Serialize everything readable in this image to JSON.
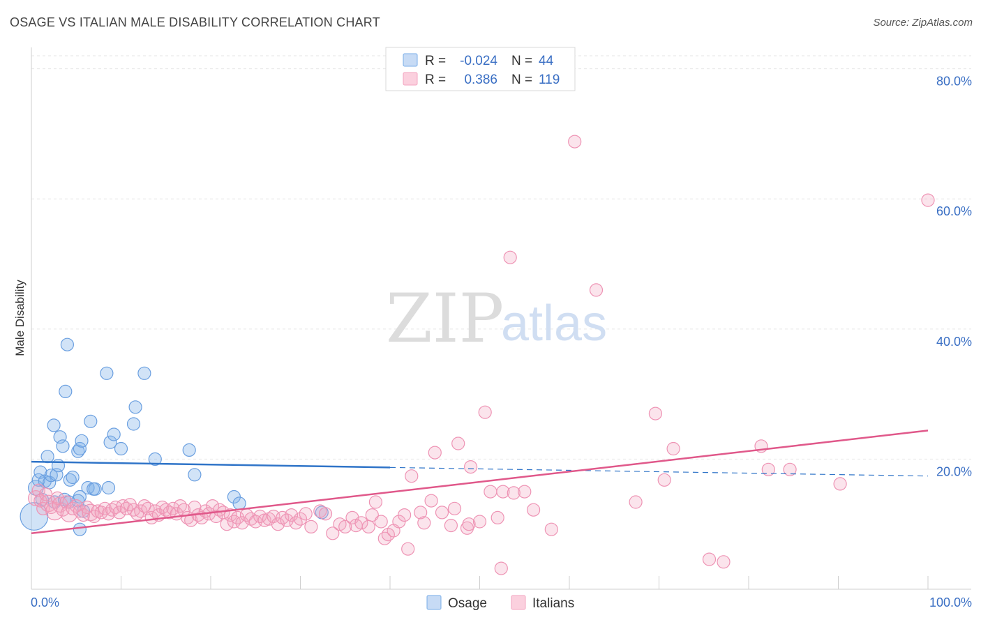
{
  "title": "OSAGE VS ITALIAN MALE DISABILITY CORRELATION CHART",
  "source": "Source: ZipAtlas.com",
  "chart_data": {
    "type": "scatter",
    "title": "OSAGE VS ITALIAN MALE DISABILITY CORRELATION CHART",
    "xlabel": "",
    "ylabel": "Male Disability",
    "xlim": [
      0,
      100
    ],
    "ylim": [
      0,
      82
    ],
    "x_tick_labels": [
      "0.0%",
      "100.0%"
    ],
    "y_ticks": [
      20,
      40,
      60,
      80
    ],
    "y_tick_labels": [
      "20.0%",
      "40.0%",
      "60.0%",
      "80.0%"
    ],
    "grid": true,
    "legend_position": "top-center",
    "stats": [
      {
        "series": "Osage",
        "r_label": "R =",
        "r_value": "-0.024",
        "n_label": "N =",
        "n_value": "44"
      },
      {
        "series": "Italians",
        "r_label": "R =",
        "r_value": "0.386",
        "n_label": "N =",
        "n_value": "119"
      }
    ],
    "series": [
      {
        "name": "Osage",
        "color": "#7aaee8",
        "line_color": "#2f74c8",
        "trend": {
          "x0": 0,
          "y0": 19.6,
          "x1": 100,
          "y1": 17.4,
          "solid_until": 40
        },
        "points": [
          [
            0.3,
            11.2,
            2.2
          ],
          [
            0.5,
            15.6,
            1.2
          ],
          [
            0.8,
            16.8,
            1
          ],
          [
            1.0,
            18.0,
            1
          ],
          [
            1.2,
            13.8,
            1
          ],
          [
            1.5,
            16.6,
            1
          ],
          [
            1.8,
            20.4,
            1
          ],
          [
            2.0,
            16.4,
            1
          ],
          [
            2.2,
            17.5,
            1
          ],
          [
            2.5,
            25.2,
            1
          ],
          [
            2.8,
            17.6,
            1
          ],
          [
            2.6,
            13.4,
            1
          ],
          [
            3.0,
            19.0,
            1
          ],
          [
            3.2,
            23.4,
            1
          ],
          [
            3.5,
            22.0,
            1
          ],
          [
            3.7,
            13.8,
            1
          ],
          [
            3.8,
            30.4,
            1
          ],
          [
            4.0,
            37.6,
            1
          ],
          [
            4.2,
            13.4,
            1
          ],
          [
            4.3,
            16.8,
            1
          ],
          [
            4.6,
            17.2,
            1
          ],
          [
            5.2,
            21.2,
            1
          ],
          [
            5.4,
            21.6,
            1
          ],
          [
            5.6,
            22.8,
            1
          ],
          [
            5.8,
            12.0,
            1
          ],
          [
            5.4,
            9.2,
            1
          ],
          [
            5.2,
            13.6,
            1
          ],
          [
            5.4,
            14.2,
            1
          ],
          [
            6.6,
            25.8,
            1
          ],
          [
            6.3,
            15.6,
            1
          ],
          [
            6.9,
            15.4,
            1
          ],
          [
            7.1,
            15.4,
            1
          ],
          [
            8.4,
            33.2,
            1
          ],
          [
            8.6,
            15.6,
            1
          ],
          [
            8.8,
            22.6,
            1
          ],
          [
            9.2,
            23.8,
            1
          ],
          [
            10.0,
            21.6,
            1
          ],
          [
            11.4,
            25.4,
            1
          ],
          [
            11.6,
            28.0,
            1
          ],
          [
            12.6,
            33.2,
            1
          ],
          [
            13.8,
            20.0,
            1
          ],
          [
            17.6,
            21.4,
            1
          ],
          [
            18.2,
            17.6,
            1
          ],
          [
            22.6,
            14.2,
            1
          ],
          [
            23.2,
            13.2,
            1
          ],
          [
            32.4,
            11.8,
            1
          ]
        ]
      },
      {
        "name": "Italians",
        "color": "#f3a5c0",
        "line_color": "#e0588a",
        "trend": {
          "x0": 0,
          "y0": 8.6,
          "x1": 100,
          "y1": 24.4
        },
        "points": [
          [
            0.5,
            14.0,
            1.2
          ],
          [
            0.8,
            15.2,
            1
          ],
          [
            1.0,
            13.6,
            1
          ],
          [
            1.3,
            12.4,
            1
          ],
          [
            1.6,
            14.6,
            1
          ],
          [
            1.9,
            13.2,
            1.3
          ],
          [
            2.2,
            12.6,
            1
          ],
          [
            2.6,
            12.0,
            1.4
          ],
          [
            2.9,
            14.0,
            1
          ],
          [
            3.2,
            13.0,
            1.2
          ],
          [
            3.5,
            12.2,
            1
          ],
          [
            3.9,
            13.4,
            1
          ],
          [
            4.2,
            11.6,
            1.3
          ],
          [
            4.6,
            12.4,
            1
          ],
          [
            5.0,
            12.8,
            1
          ],
          [
            5.4,
            12.0,
            1
          ],
          [
            5.8,
            11.4,
            1
          ],
          [
            6.2,
            12.6,
            1
          ],
          [
            6.6,
            11.8,
            1.3
          ],
          [
            7.0,
            11.2,
            1
          ],
          [
            7.4,
            12.0,
            1
          ],
          [
            7.8,
            11.8,
            1
          ],
          [
            8.2,
            12.4,
            1
          ],
          [
            8.6,
            11.6,
            1
          ],
          [
            9.0,
            12.2,
            1
          ],
          [
            9.4,
            12.6,
            1
          ],
          [
            9.8,
            11.8,
            1
          ],
          [
            10.2,
            12.8,
            1
          ],
          [
            10.6,
            12.4,
            1
          ],
          [
            11.0,
            13.0,
            1
          ],
          [
            11.4,
            12.2,
            1
          ],
          [
            11.8,
            11.6,
            1
          ],
          [
            12.2,
            12.0,
            1
          ],
          [
            12.6,
            12.8,
            1
          ],
          [
            13.0,
            12.4,
            1
          ],
          [
            13.4,
            11.0,
            1
          ],
          [
            13.8,
            12.0,
            1
          ],
          [
            14.2,
            11.4,
            1
          ],
          [
            14.6,
            12.6,
            1
          ],
          [
            15.0,
            12.2,
            1
          ],
          [
            15.4,
            11.8,
            1
          ],
          [
            15.8,
            12.4,
            1
          ],
          [
            16.2,
            11.6,
            1
          ],
          [
            16.6,
            12.8,
            1
          ],
          [
            17.0,
            12.2,
            1
          ],
          [
            17.4,
            11.0,
            1
          ],
          [
            17.8,
            10.6,
            1
          ],
          [
            18.2,
            12.6,
            1
          ],
          [
            18.6,
            11.4,
            1
          ],
          [
            19.0,
            11.0,
            1
          ],
          [
            19.4,
            12.0,
            1
          ],
          [
            19.8,
            11.6,
            1
          ],
          [
            20.2,
            12.8,
            1
          ],
          [
            20.6,
            11.2,
            1
          ],
          [
            21.0,
            12.2,
            1
          ],
          [
            21.4,
            11.8,
            1
          ],
          [
            21.8,
            10.0,
            1
          ],
          [
            22.2,
            11.4,
            1
          ],
          [
            22.6,
            10.4,
            1
          ],
          [
            23.0,
            11.0,
            1
          ],
          [
            23.5,
            10.2,
            1
          ],
          [
            24.0,
            11.4,
            1
          ],
          [
            24.5,
            10.8,
            1
          ],
          [
            25.0,
            10.4,
            1
          ],
          [
            25.5,
            11.2,
            1
          ],
          [
            26.0,
            10.6,
            1
          ],
          [
            26.5,
            10.8,
            1
          ],
          [
            27.0,
            11.2,
            1
          ],
          [
            27.5,
            10.0,
            1
          ],
          [
            28.0,
            11.0,
            1
          ],
          [
            28.5,
            10.6,
            1
          ],
          [
            29.0,
            11.4,
            1
          ],
          [
            29.5,
            10.2,
            1
          ],
          [
            30.0,
            10.8,
            1
          ],
          [
            30.6,
            11.6,
            1
          ],
          [
            31.2,
            9.6,
            1
          ],
          [
            32.2,
            12.0,
            1
          ],
          [
            32.8,
            11.6,
            1
          ],
          [
            33.6,
            8.6,
            1
          ],
          [
            34.4,
            10.0,
            1
          ],
          [
            35.0,
            9.6,
            1
          ],
          [
            35.8,
            11.0,
            1
          ],
          [
            36.2,
            9.8,
            1
          ],
          [
            36.8,
            10.2,
            1
          ],
          [
            37.6,
            9.6,
            1
          ],
          [
            38.0,
            11.4,
            1
          ],
          [
            38.4,
            13.4,
            1
          ],
          [
            39.0,
            10.4,
            1
          ],
          [
            39.4,
            7.8,
            1
          ],
          [
            39.8,
            8.4,
            1
          ],
          [
            40.4,
            9.0,
            1
          ],
          [
            41.0,
            10.4,
            1
          ],
          [
            41.6,
            11.4,
            1
          ],
          [
            42.0,
            6.2,
            1
          ],
          [
            42.4,
            17.4,
            1
          ],
          [
            43.4,
            11.8,
            1
          ],
          [
            43.8,
            10.2,
            1
          ],
          [
            44.6,
            13.6,
            1
          ],
          [
            45.0,
            21.0,
            1
          ],
          [
            45.8,
            11.8,
            1
          ],
          [
            46.8,
            9.8,
            1
          ],
          [
            47.2,
            12.4,
            1
          ],
          [
            47.6,
            22.4,
            1
          ],
          [
            48.6,
            9.4,
            1
          ],
          [
            48.8,
            10.0,
            1
          ],
          [
            49.0,
            18.8,
            1
          ],
          [
            50.0,
            10.4,
            1
          ],
          [
            50.6,
            27.2,
            1
          ],
          [
            51.2,
            15.0,
            1
          ],
          [
            52.0,
            11.0,
            1
          ],
          [
            52.4,
            3.2,
            1
          ],
          [
            52.6,
            15.0,
            1
          ],
          [
            53.4,
            51.0,
            1
          ],
          [
            53.8,
            14.8,
            1
          ],
          [
            55.0,
            15.0,
            1
          ],
          [
            56.0,
            12.2,
            1
          ],
          [
            58.0,
            9.2,
            1
          ],
          [
            60.6,
            68.8,
            1
          ],
          [
            63.0,
            46.0,
            1
          ],
          [
            67.4,
            13.4,
            1
          ],
          [
            69.6,
            27.0,
            1
          ],
          [
            70.6,
            16.8,
            1
          ],
          [
            71.6,
            21.6,
            1
          ],
          [
            75.6,
            4.6,
            1
          ],
          [
            77.2,
            4.2,
            1
          ],
          [
            81.4,
            22.0,
            1
          ],
          [
            82.2,
            18.4,
            1
          ],
          [
            84.6,
            18.4,
            1
          ],
          [
            90.2,
            16.2,
            1
          ],
          [
            100.0,
            59.8,
            1
          ]
        ]
      }
    ]
  },
  "legend_bottom": [
    {
      "label": "Osage",
      "color": "#7aaee8"
    },
    {
      "label": "Italians",
      "color": "#f3a5c0"
    }
  ],
  "watermark": {
    "zip": "ZIP",
    "atlas": "atlas"
  }
}
